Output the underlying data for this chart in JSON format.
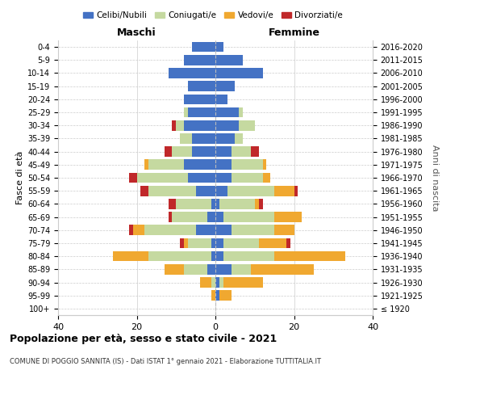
{
  "age_groups": [
    "100+",
    "95-99",
    "90-94",
    "85-89",
    "80-84",
    "75-79",
    "70-74",
    "65-69",
    "60-64",
    "55-59",
    "50-54",
    "45-49",
    "40-44",
    "35-39",
    "30-34",
    "25-29",
    "20-24",
    "15-19",
    "10-14",
    "5-9",
    "0-4"
  ],
  "birth_years": [
    "≤ 1920",
    "1921-1925",
    "1926-1930",
    "1931-1935",
    "1936-1940",
    "1941-1945",
    "1946-1950",
    "1951-1955",
    "1956-1960",
    "1961-1965",
    "1966-1970",
    "1971-1975",
    "1976-1980",
    "1981-1985",
    "1986-1990",
    "1991-1995",
    "1996-2000",
    "2001-2005",
    "2006-2010",
    "2011-2015",
    "2016-2020"
  ],
  "colors": {
    "celibi": "#4472c4",
    "coniugati": "#c5d9a0",
    "vedovi": "#f0a830",
    "divorziati": "#c0282a"
  },
  "males": {
    "celibi": [
      0,
      0,
      0,
      2,
      1,
      1,
      5,
      2,
      1,
      5,
      7,
      8,
      6,
      6,
      8,
      7,
      8,
      7,
      12,
      8,
      6
    ],
    "coniugati": [
      0,
      0,
      1,
      6,
      16,
      6,
      13,
      9,
      9,
      12,
      13,
      9,
      5,
      3,
      2,
      1,
      0,
      0,
      0,
      0,
      0
    ],
    "vedovi": [
      0,
      1,
      3,
      5,
      9,
      1,
      3,
      0,
      0,
      0,
      0,
      1,
      0,
      0,
      0,
      0,
      0,
      0,
      0,
      0,
      0
    ],
    "divorziati": [
      0,
      0,
      0,
      0,
      0,
      1,
      1,
      1,
      2,
      2,
      2,
      0,
      2,
      0,
      1,
      0,
      0,
      0,
      0,
      0,
      0
    ]
  },
  "females": {
    "celibi": [
      0,
      1,
      1,
      4,
      2,
      2,
      4,
      2,
      1,
      3,
      4,
      4,
      4,
      5,
      6,
      6,
      3,
      5,
      12,
      7,
      2
    ],
    "coniugati": [
      0,
      0,
      1,
      5,
      13,
      9,
      11,
      13,
      9,
      12,
      8,
      8,
      5,
      2,
      4,
      1,
      0,
      0,
      0,
      0,
      0
    ],
    "vedovi": [
      0,
      3,
      10,
      16,
      18,
      7,
      5,
      7,
      1,
      5,
      2,
      1,
      0,
      0,
      0,
      0,
      0,
      0,
      0,
      0,
      0
    ],
    "divorziati": [
      0,
      0,
      0,
      0,
      0,
      1,
      0,
      0,
      1,
      1,
      0,
      0,
      2,
      0,
      0,
      0,
      0,
      0,
      0,
      0,
      0
    ]
  },
  "xlim": 40,
  "title": "Popolazione per età, sesso e stato civile - 2021",
  "subtitle": "COMUNE DI POGGIO SANNITA (IS) - Dati ISTAT 1° gennaio 2021 - Elaborazione TUTTITALIA.IT",
  "xlabel_maschi": "Maschi",
  "xlabel_femmine": "Femmine",
  "ylabel_left": "Fasce di età",
  "ylabel_right": "Anni di nascita"
}
